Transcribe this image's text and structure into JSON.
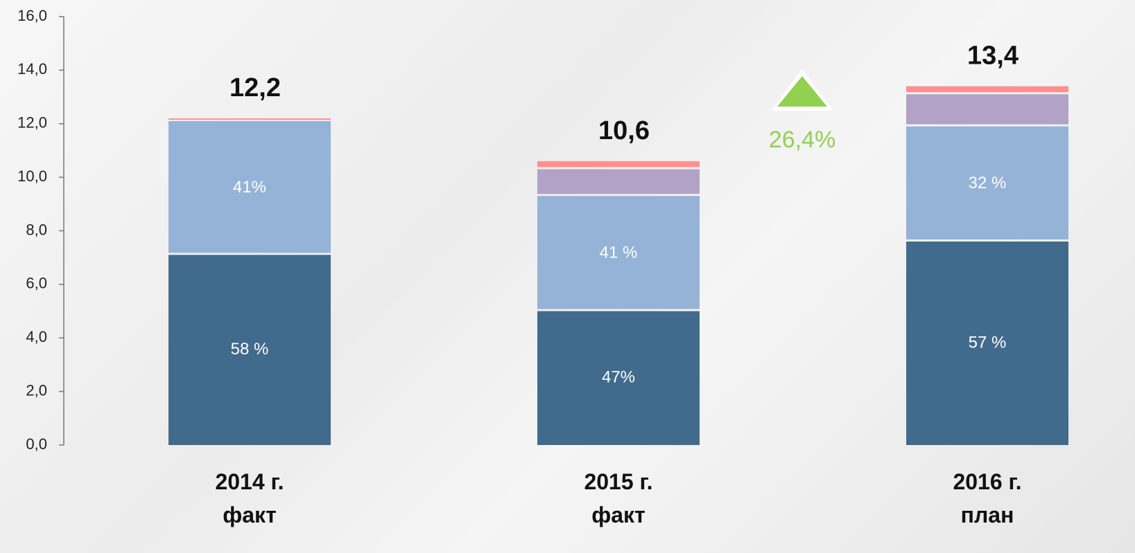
{
  "chart_data": {
    "type": "stacked_bar",
    "categories": [
      "2014 г.\nфакт",
      "2015 г.\nфакт",
      "2016 г.\nплан"
    ],
    "series": [
      {
        "color": "#416b8c",
        "values": [
          7.1,
          5.0,
          7.6
        ],
        "value_labels": [
          "58 %",
          "47%",
          "57 %"
        ]
      },
      {
        "color": "#95b3d7",
        "values": [
          5.0,
          4.3,
          4.3
        ],
        "value_labels": [
          "41%",
          "41 %",
          "32 %"
        ]
      },
      {
        "color": "#b3a2c7",
        "values": [
          0,
          1.0,
          1.2
        ],
        "value_labels": [
          null,
          null,
          null
        ]
      },
      {
        "color": "#ff8f8f",
        "values": [
          0.1,
          0.3,
          0.3
        ],
        "value_labels": [
          null,
          null,
          null
        ]
      }
    ],
    "totals": [
      12.2,
      10.6,
      13.4
    ],
    "total_labels": [
      "12,2",
      "10,6",
      "13,4"
    ],
    "annotation": {
      "value": 26.4,
      "label": "26,4%",
      "color": "#92d050"
    },
    "ylim": [
      0,
      16
    ],
    "yticks": [
      {
        "value": 0,
        "label": "0,0"
      },
      {
        "value": 2,
        "label": "2,0"
      },
      {
        "value": 4,
        "label": "4,0"
      },
      {
        "value": 6,
        "label": "6,0"
      },
      {
        "value": 8,
        "label": "8,0"
      },
      {
        "value": 10,
        "label": "10,0"
      },
      {
        "value": 12,
        "label": "12,0"
      },
      {
        "value": 14,
        "label": "14,0"
      },
      {
        "value": 16,
        "label": "16,0"
      }
    ],
    "grid": false
  }
}
